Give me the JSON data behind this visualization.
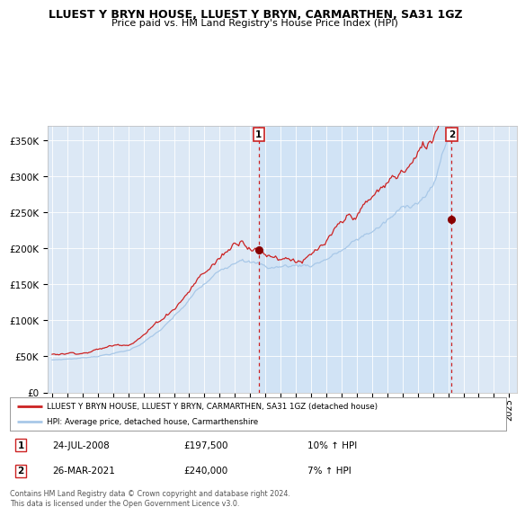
{
  "title": "LLUEST Y BRYN HOUSE, LLUEST Y BRYN, CARMARTHEN, SA31 1GZ",
  "subtitle": "Price paid vs. HM Land Registry's House Price Index (HPI)",
  "legend_line1": "LLUEST Y BRYN HOUSE, LLUEST Y BRYN, CARMARTHEN, SA31 1GZ (detached house)",
  "legend_line2": "HPI: Average price, detached house, Carmarthenshire",
  "annotation1_label": "1",
  "annotation1_date": "24-JUL-2008",
  "annotation1_price": "£197,500",
  "annotation1_hpi": "10% ↑ HPI",
  "annotation2_label": "2",
  "annotation2_date": "26-MAR-2021",
  "annotation2_price": "£240,000",
  "annotation2_hpi": "7% ↑ HPI",
  "footnote": "Contains HM Land Registry data © Crown copyright and database right 2024.\nThis data is licensed under the Open Government Licence v3.0.",
  "hpi_color": "#a8c8e8",
  "price_color": "#cc2222",
  "bg_color": "#dce8f5",
  "vline_color": "#cc2222",
  "marker1_x": 2008.56,
  "marker1_y": 197500,
  "marker2_x": 2021.23,
  "marker2_y": 240000,
  "vline1_x": 2008.56,
  "vline2_x": 2021.23,
  "ylim": [
    0,
    370000
  ],
  "xlim_start": 1994.7,
  "xlim_end": 2025.5,
  "ylabel_ticks": [
    0,
    50000,
    100000,
    150000,
    200000,
    250000,
    300000,
    350000
  ],
  "ylabel_labels": [
    "£0",
    "£50K",
    "£100K",
    "£150K",
    "£200K",
    "£250K",
    "£300K",
    "£350K"
  ]
}
